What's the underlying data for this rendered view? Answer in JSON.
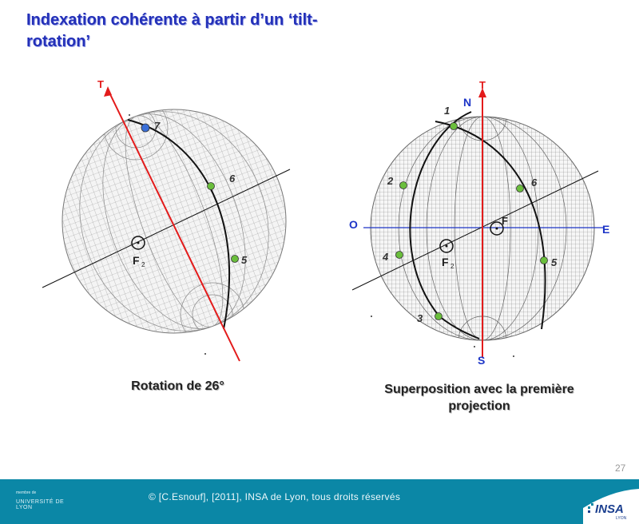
{
  "title": "Indexation cohérente à partir d’un ‘tilt-rotation’",
  "left": {
    "axis_label": "T",
    "pole_labels": [
      "7",
      "6",
      "5"
    ],
    "point_label": "F",
    "point_sub": "2",
    "caption": "Rotation de 26°"
  },
  "right": {
    "axis_label": "T",
    "north": "N",
    "south": "S",
    "east": "E",
    "west": "O",
    "pole_labels": [
      "1",
      "2",
      "3",
      "4",
      "5",
      "6"
    ],
    "point_label": "F",
    "point_sub": "2",
    "point2_label": "F",
    "caption": "Superposition avec la première projection"
  },
  "page_number": "27",
  "footer": {
    "copyright": "© [C.Esnouf], [2011], INSA de Lyon, tous droits réservés",
    "univ_small": "membre de",
    "univ_name": "UNIVERSITÉ DE LYON",
    "insa": "INSA",
    "insa_sub": "LYON"
  },
  "colors": {
    "title": "#2330b8",
    "axis_line": "#e31b1b",
    "pole_green": "#6abe3c",
    "pole_blue": "#3a6fd8",
    "compass_blue": "#1d35c7",
    "footer_bg": "#0b87a6"
  }
}
